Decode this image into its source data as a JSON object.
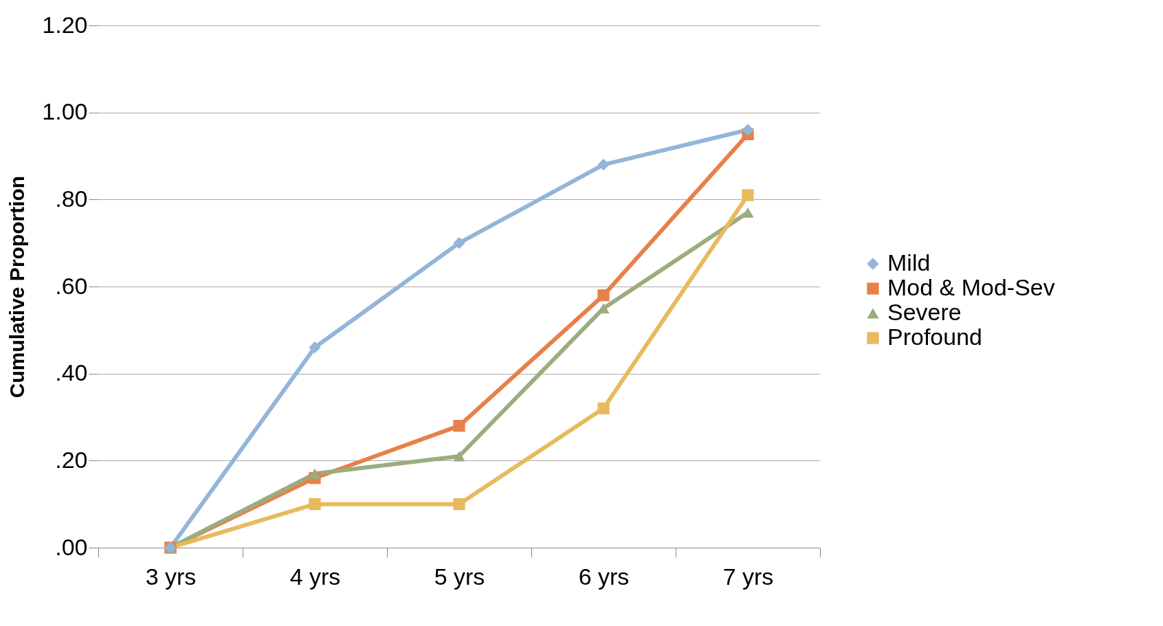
{
  "chart_data": {
    "type": "line",
    "ylabel": "Cumulative Proportion",
    "categories": [
      "3 yrs",
      "4 yrs",
      "5 yrs",
      "6 yrs",
      "7 yrs"
    ],
    "series": [
      {
        "name": "Mild",
        "color": "#93b6d8",
        "marker": "diamond",
        "values": [
          0,
          0.46,
          0.7,
          0.88,
          0.96
        ]
      },
      {
        "name": "Mod & Mod-Sev",
        "color": "#e8804a",
        "marker": "square",
        "values": [
          0,
          0.16,
          0.28,
          0.58,
          0.95
        ]
      },
      {
        "name": "Severe",
        "color": "#9bad7f",
        "marker": "triangle",
        "values": [
          0,
          0.17,
          0.21,
          0.55,
          0.77
        ]
      },
      {
        "name": "Profound",
        "color": "#e8ba5e",
        "marker": "square",
        "values": [
          0,
          0.1,
          0.1,
          0.32,
          0.81
        ]
      }
    ],
    "ylim": [
      0,
      1.2
    ],
    "yticks": [
      {
        "value": 0,
        "label": ".00"
      },
      {
        "value": 0.2,
        "label": ".20"
      },
      {
        "value": 0.4,
        "label": ".40"
      },
      {
        "value": 0.6,
        "label": ".60"
      },
      {
        "value": 0.8,
        "label": ".80"
      },
      {
        "value": 1.0,
        "label": "1.00"
      },
      {
        "value": 1.2,
        "label": "1.20"
      }
    ],
    "grid": "y",
    "legend": "right",
    "line_style": "solid"
  }
}
